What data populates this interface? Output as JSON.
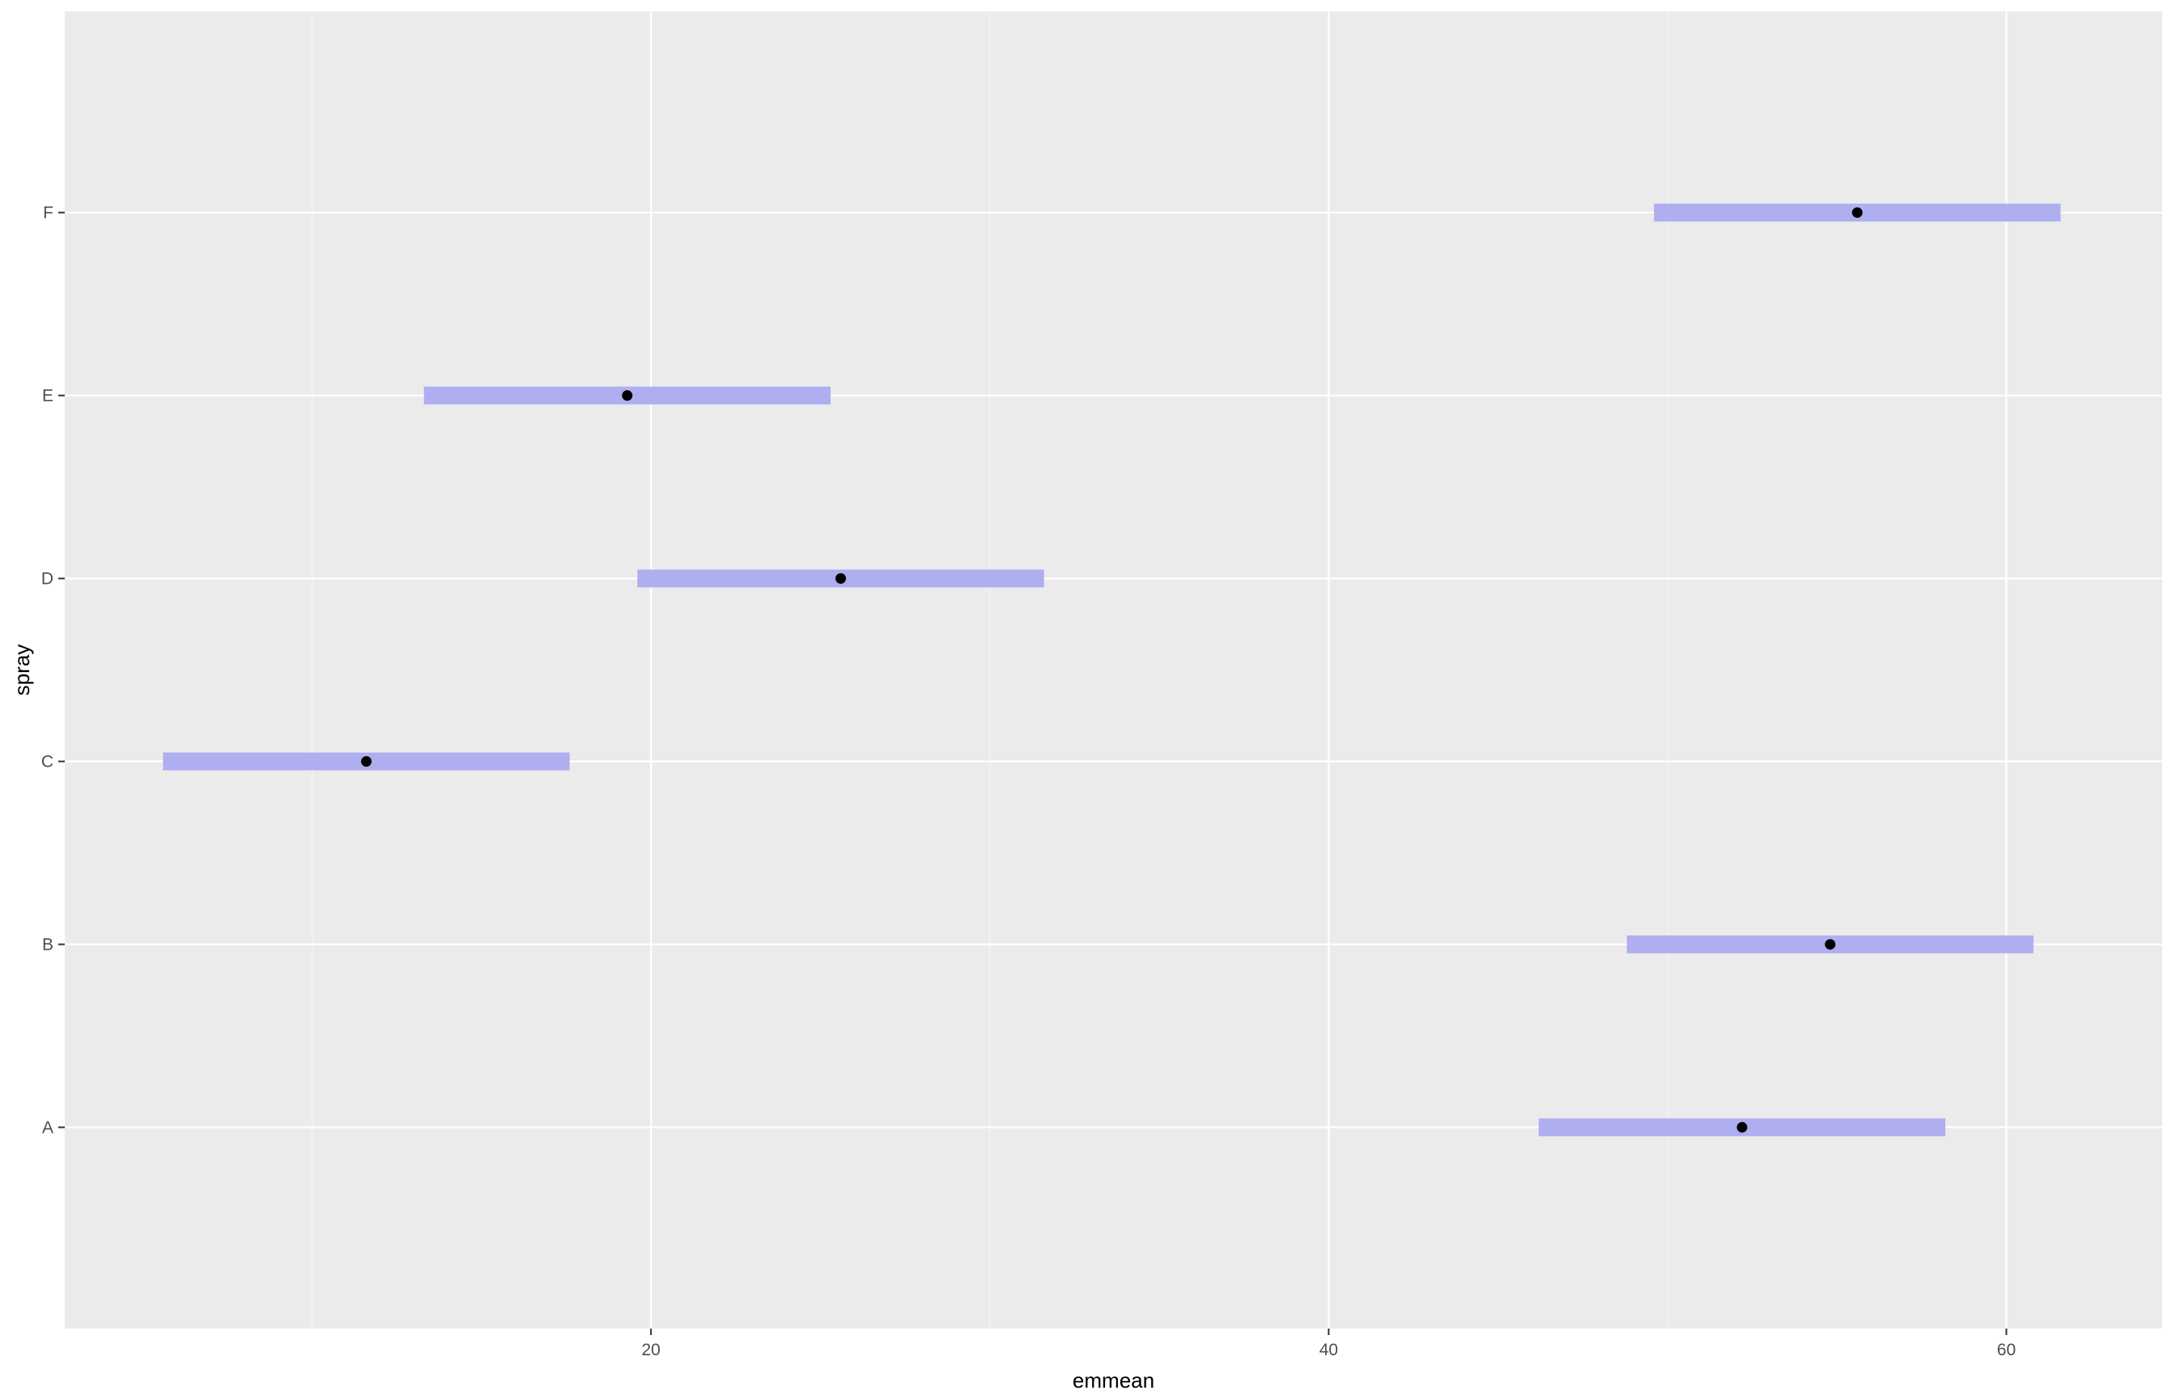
{
  "chart_data": {
    "type": "scatter",
    "subtype": "point-range",
    "title": "",
    "xlabel": "emmean",
    "ylabel": "spray",
    "xlim": [
      2.7,
      64.6
    ],
    "xticks": [
      20,
      40,
      60
    ],
    "xticks_minor": [
      10,
      30,
      50
    ],
    "categories": [
      "A",
      "B",
      "C",
      "D",
      "E",
      "F"
    ],
    "points": [
      {
        "category": "A",
        "emmean": 52.2,
        "lower": 46.2,
        "upper": 58.2
      },
      {
        "category": "B",
        "emmean": 54.8,
        "lower": 48.8,
        "upper": 60.8
      },
      {
        "category": "C",
        "emmean": 11.6,
        "lower": 5.6,
        "upper": 17.6
      },
      {
        "category": "D",
        "emmean": 25.6,
        "lower": 19.6,
        "upper": 31.6
      },
      {
        "category": "E",
        "emmean": 19.3,
        "lower": 13.3,
        "upper": 25.3
      },
      {
        "category": "F",
        "emmean": 55.6,
        "lower": 49.6,
        "upper": 61.6
      }
    ],
    "grid": true,
    "legend": "none",
    "colors": {
      "panel": "#ebebeb",
      "grid_major": "#ffffff",
      "grid_minor": "#f5f5f5",
      "interval": "#aeaef0",
      "point": "#000000",
      "tick_text": "#4d4d4d",
      "tick_mark": "#333333"
    }
  }
}
